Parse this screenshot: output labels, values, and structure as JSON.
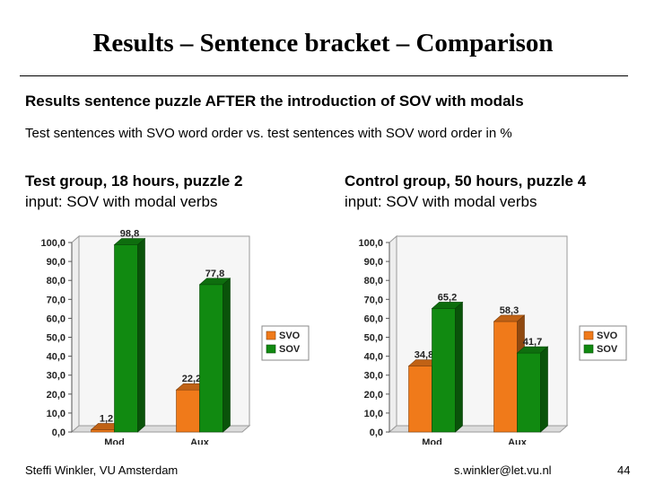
{
  "slide": {
    "title": "Results – Sentence bracket – Comparison",
    "subtitle": "Results sentence puzzle AFTER the introduction of SOV with modals",
    "description": "Test sentences with SVO word order vs. test sentences with SOV word order in %",
    "left_group": {
      "heading": "Test group, 18 hours, puzzle 2",
      "detail": "input: SOV with modal verbs"
    },
    "right_group": {
      "heading": "Control group, 50 hours, puzzle 4",
      "detail": "input: SOV with modal verbs"
    },
    "footer_left": "Steffi Winkler, VU Amsterdam",
    "footer_right": "s.winkler@let.vu.nl",
    "page_number": "44"
  },
  "colors": {
    "svo": "#f07a1a",
    "sov": "#118a11"
  },
  "chart_data": [
    {
      "type": "bar",
      "categories": [
        "Mod",
        "Aux"
      ],
      "series": [
        {
          "name": "SVO",
          "values": [
            1.2,
            22.2
          ],
          "labels": [
            "1,2",
            "22,2"
          ]
        },
        {
          "name": "SOV",
          "values": [
            98.8,
            77.8
          ],
          "labels": [
            "98,8",
            "77,8"
          ]
        }
      ],
      "yticks": [
        "0,0",
        "10,0",
        "20,0",
        "30,0",
        "40,0",
        "50,0",
        "60,0",
        "70,0",
        "80,0",
        "90,0",
        "100,0"
      ],
      "ylim": [
        0,
        100
      ],
      "legend": "right",
      "grid": false
    },
    {
      "type": "bar",
      "categories": [
        "Mod",
        "Aux"
      ],
      "series": [
        {
          "name": "SVO",
          "values": [
            34.8,
            58.3
          ],
          "labels": [
            "34,8",
            "58,3"
          ]
        },
        {
          "name": "SOV",
          "values": [
            65.2,
            41.7
          ],
          "labels": [
            "65,2",
            "41,7"
          ]
        }
      ],
      "yticks": [
        "0,0",
        "10,0",
        "20,0",
        "30,0",
        "40,0",
        "50,0",
        "60,0",
        "70,0",
        "80,0",
        "90,0",
        "100,0"
      ],
      "ylim": [
        0,
        100
      ],
      "legend": "right",
      "grid": false
    }
  ]
}
